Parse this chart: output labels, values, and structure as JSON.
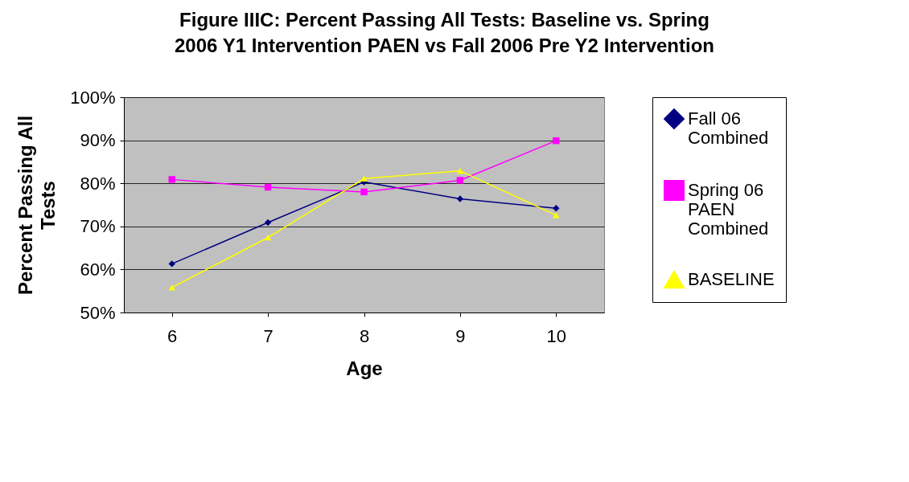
{
  "chart_data": {
    "type": "line",
    "title": "Figure IIIC: Percent Passing All Tests: Baseline vs. Spring 2006 Y1 Intervention PAEN vs Fall 2006 Pre Y2 Intervention",
    "xlabel": "Age",
    "ylabel": "Percent Passing All Tests",
    "categories": [
      "6",
      "7",
      "8",
      "9",
      "10"
    ],
    "series": [
      {
        "name": "Fall 06 Combined",
        "color": "#000080",
        "marker": "diamond",
        "values": [
          61.3,
          70.9,
          80.3,
          76.4,
          74.2
        ]
      },
      {
        "name": "Spring 06 PAEN Combined",
        "color": "#ff00ff",
        "marker": "square",
        "values": [
          80.9,
          79.1,
          78.0,
          80.7,
          89.9
        ]
      },
      {
        "name": "BASELINE",
        "color": "#ffff00",
        "marker": "triangle",
        "values": [
          55.8,
          67.4,
          81.1,
          82.9,
          72.6
        ]
      }
    ],
    "ylim": [
      50,
      100
    ],
    "yticks": [
      {
        "value": 50,
        "label": "50%"
      },
      {
        "value": 60,
        "label": "60%"
      },
      {
        "value": 70,
        "label": "70%"
      },
      {
        "value": 80,
        "label": "80%"
      },
      {
        "value": 90,
        "label": "90%"
      },
      {
        "value": 100,
        "label": "100%"
      }
    ],
    "grid": "y",
    "legend": "right",
    "line_style": "solid"
  }
}
